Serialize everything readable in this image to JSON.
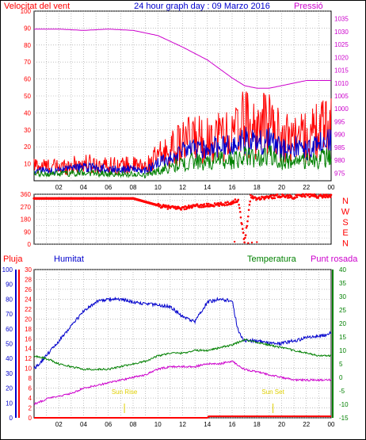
{
  "chart_data": [
    {
      "type": "line",
      "title": "24 hour graph day : 09 Marzo 2016",
      "left_axis_label": "Velocitat del vent",
      "right_axis_label": "Pressió",
      "x_tick_labels": [
        "02",
        "04",
        "06",
        "08",
        "10",
        "12",
        "14",
        "16",
        "18",
        "20",
        "22",
        "00"
      ],
      "left_ylim": [
        0,
        100
      ],
      "left_ticks": [
        10,
        20,
        30,
        40,
        50,
        60,
        70,
        80,
        90,
        100
      ],
      "right_ylim": [
        972,
        1038
      ],
      "right_ticks": [
        975,
        980,
        985,
        990,
        995,
        1000,
        1005,
        1010,
        1015,
        1020,
        1025,
        1030,
        1035
      ],
      "grid": true,
      "series": [
        {
          "name": "Velocitat del vent",
          "color": "#ff0000",
          "x_hours": [
            0,
            2,
            4,
            6,
            8,
            9,
            10,
            11,
            12,
            13,
            14,
            15,
            16,
            17,
            18,
            19,
            20,
            21,
            22,
            23,
            24
          ],
          "values": [
            9,
            8,
            10,
            9,
            9,
            8,
            14,
            18,
            22,
            25,
            24,
            28,
            26,
            35,
            30,
            35,
            24,
            27,
            25,
            30,
            33
          ]
        },
        {
          "name": "",
          "color": "#0000cc",
          "x_hours": [
            0,
            2,
            4,
            6,
            8,
            9,
            10,
            11,
            12,
            13,
            14,
            15,
            16,
            17,
            18,
            19,
            20,
            21,
            22,
            23,
            24
          ],
          "values": [
            6,
            6,
            8,
            7,
            7,
            6,
            10,
            14,
            17,
            19,
            18,
            21,
            20,
            24,
            22,
            24,
            18,
            20,
            18,
            21,
            23
          ]
        },
        {
          "name": "",
          "color": "#008000",
          "x_hours": [
            0,
            2,
            4,
            6,
            8,
            9,
            10,
            11,
            12,
            13,
            14,
            15,
            16,
            17,
            18,
            19,
            20,
            21,
            22,
            23,
            24
          ],
          "values": [
            4,
            4,
            5,
            4,
            4,
            3,
            6,
            8,
            10,
            12,
            10,
            13,
            12,
            15,
            13,
            15,
            11,
            12,
            11,
            13,
            14
          ]
        },
        {
          "name": "Pressió",
          "axis": "right",
          "color": "#cc00cc",
          "x_hours": [
            0,
            2,
            4,
            6,
            8,
            10,
            12,
            14,
            16,
            17,
            18,
            19,
            20,
            21,
            22,
            23,
            24
          ],
          "values": [
            1031,
            1031,
            1030.5,
            1031,
            1030.5,
            1028.5,
            1024,
            1019,
            1012,
            1009,
            1008,
            1008,
            1009,
            1010,
            1011,
            1011,
            1011
          ]
        }
      ]
    },
    {
      "type": "scatter",
      "title": "",
      "x_tick_labels": [],
      "left_ylim": [
        0,
        360
      ],
      "left_ticks": [
        0,
        45,
        90,
        135,
        180,
        225,
        270,
        315,
        360
      ],
      "right_labels": [
        "N",
        "W",
        "S",
        "E",
        "N"
      ],
      "series": [
        {
          "name": "",
          "color": "#ff0000",
          "x_hours": [
            0,
            2,
            4,
            6,
            8,
            10,
            10.5,
            11,
            12,
            13,
            14,
            15,
            16,
            16.5,
            17,
            17.5,
            18,
            19,
            20,
            21,
            22,
            23,
            24
          ],
          "values": [
            330,
            330,
            330,
            330,
            330,
            280,
            270,
            265,
            260,
            275,
            280,
            285,
            300,
            320,
            10,
            345,
            330,
            340,
            350,
            340,
            355,
            345,
            350
          ]
        }
      ]
    },
    {
      "type": "line",
      "title": "",
      "labels": {
        "rain": "Pluja",
        "humidity": "Humitat",
        "temperature": "Temperatura",
        "dew_point": "Punt rosada"
      },
      "x_tick_labels": [
        "02",
        "04",
        "06",
        "08",
        "10",
        "12",
        "14",
        "16",
        "18",
        "20",
        "22",
        "00"
      ],
      "humidity_axis": {
        "range": [
          0,
          100
        ],
        "ticks": [
          0,
          10,
          20,
          30,
          40,
          50,
          60,
          70,
          80,
          90,
          100
        ]
      },
      "rain_axis": {
        "range": [
          0,
          30
        ],
        "ticks": [
          0,
          2,
          4,
          6,
          8,
          10,
          12,
          14,
          16,
          18,
          20,
          22,
          24,
          26,
          28,
          30
        ]
      },
      "temperature_axis": {
        "range": [
          -15,
          40
        ],
        "ticks": [
          -15,
          -10,
          -5,
          0,
          5,
          10,
          15,
          20,
          25,
          30,
          35,
          40
        ]
      },
      "annotations": [
        {
          "text": "Sun Rise",
          "x_hour": 7.3
        },
        {
          "text": "Sun Set",
          "x_hour": 19.3
        }
      ],
      "series": [
        {
          "name": "Humitat",
          "axis": "humidity",
          "color": "#0000cc",
          "x_hours": [
            0,
            1,
            2,
            3,
            4,
            5,
            6,
            7,
            8,
            9,
            10,
            11,
            12,
            13,
            14,
            15,
            16,
            16.5,
            17,
            18,
            19,
            20,
            21,
            22,
            23,
            24
          ],
          "values": [
            33,
            42,
            52,
            62,
            72,
            78,
            80,
            80,
            78,
            77,
            76,
            75,
            68,
            65,
            78,
            80,
            79,
            58,
            52,
            52,
            50,
            50,
            52,
            54,
            55,
            57
          ]
        },
        {
          "name": "Temperatura",
          "axis": "temperature",
          "color": "#008000",
          "x_hours": [
            0,
            1,
            2,
            3,
            4,
            5,
            6,
            7,
            8,
            9,
            10,
            11,
            12,
            13,
            14,
            15,
            16,
            17,
            18,
            19,
            20,
            21,
            22,
            23,
            24
          ],
          "values": [
            8,
            7,
            5,
            4,
            3,
            3,
            3,
            4,
            5,
            6,
            8,
            9,
            9,
            10,
            10,
            11,
            12,
            14,
            13,
            12,
            11,
            10,
            9,
            8,
            8
          ]
        },
        {
          "name": "Punt rosada",
          "axis": "temperature",
          "color": "#cc00cc",
          "x_hours": [
            0,
            1,
            2,
            3,
            4,
            5,
            6,
            7,
            8,
            9,
            10,
            11,
            12,
            13,
            14,
            15,
            16,
            17,
            18,
            19,
            20,
            21,
            22,
            23,
            24
          ],
          "values": [
            -10,
            -8,
            -7,
            -6,
            -4,
            -3,
            -2,
            -1,
            0,
            1,
            3,
            4,
            4,
            4,
            5,
            5,
            6,
            3,
            2,
            1,
            0,
            -1,
            -1,
            -1,
            -1
          ]
        },
        {
          "name": "Pluja",
          "axis": "rain",
          "color": "#ff0000",
          "x_hours": [
            0,
            4,
            8,
            12,
            14,
            14.1,
            16,
            20,
            24
          ],
          "values": [
            0,
            0,
            0,
            0,
            0,
            0.3,
            0.3,
            0.3,
            0.3
          ]
        }
      ]
    }
  ]
}
